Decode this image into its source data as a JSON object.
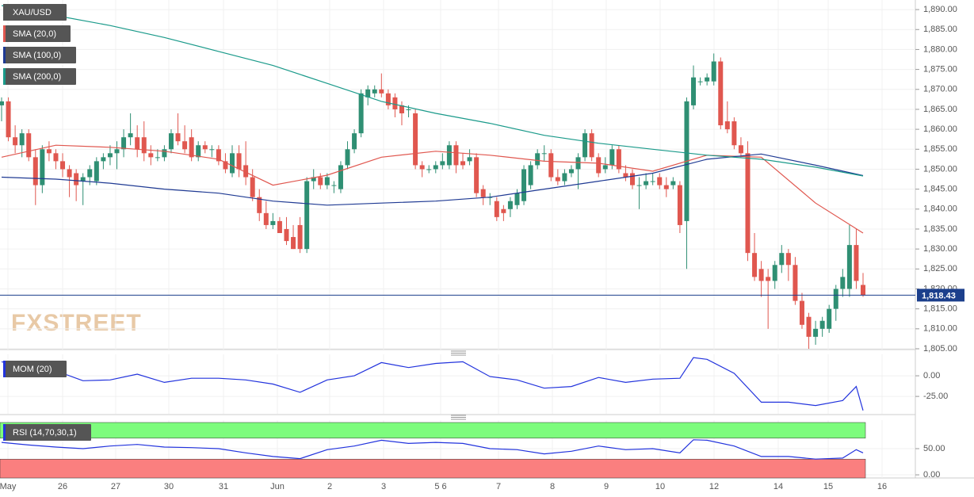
{
  "watermark": "FXSTREET",
  "x_axis": {
    "labels": [
      "May",
      "26",
      "27",
      "30",
      "31",
      "Jun",
      "2",
      "3",
      "5 6",
      "7",
      "8",
      "9",
      "10",
      "12",
      "14",
      "15",
      "16"
    ]
  },
  "chart_data": [
    {
      "type": "candlestick",
      "name": "XAU/USD",
      "up_color": "#2f8f73",
      "down_color": "#e0574f",
      "ohlc": [
        [
          1866,
          1868,
          1862,
          1867
        ],
        [
          1867,
          1868,
          1857,
          1858
        ],
        [
          1858,
          1861,
          1854,
          1856
        ],
        [
          1856,
          1860,
          1853,
          1859
        ],
        [
          1859,
          1860,
          1852,
          1853
        ],
        [
          1853,
          1855,
          1841,
          1846
        ],
        [
          1846,
          1856,
          1844,
          1855
        ],
        [
          1855,
          1857,
          1852,
          1854
        ],
        [
          1854,
          1855,
          1850,
          1852
        ],
        [
          1852,
          1854,
          1848,
          1850
        ],
        [
          1850,
          1851,
          1843,
          1848
        ],
        [
          1849,
          1850,
          1842,
          1846
        ],
        [
          1847,
          1849,
          1841,
          1848
        ],
        [
          1848,
          1851,
          1846,
          1850
        ],
        [
          1847,
          1853,
          1846,
          1852
        ],
        [
          1852,
          1854,
          1850,
          1853
        ],
        [
          1853,
          1856,
          1851,
          1854
        ],
        [
          1854,
          1857,
          1850,
          1855
        ],
        [
          1855,
          1860,
          1853,
          1858
        ],
        [
          1858,
          1864,
          1856,
          1859
        ],
        [
          1858,
          1861,
          1853,
          1855
        ],
        [
          1858,
          1862,
          1852,
          1854
        ],
        [
          1854,
          1856,
          1851,
          1853
        ],
        [
          1853,
          1855,
          1852,
          1853
        ],
        [
          1853,
          1856,
          1852,
          1855
        ],
        [
          1855,
          1860,
          1854,
          1859
        ],
        [
          1859,
          1864,
          1856,
          1857
        ],
        [
          1857,
          1861,
          1854,
          1855
        ],
        [
          1858,
          1860,
          1852,
          1853
        ],
        [
          1853,
          1857,
          1852,
          1856
        ],
        [
          1856,
          1857,
          1854,
          1855
        ],
        [
          1855,
          1856,
          1853,
          1855
        ],
        [
          1855,
          1856,
          1851,
          1852
        ],
        [
          1852,
          1854,
          1849,
          1850
        ],
        [
          1849,
          1856,
          1848,
          1854
        ],
        [
          1854,
          1856,
          1848,
          1850
        ],
        [
          1851,
          1857,
          1846,
          1848
        ],
        [
          1848,
          1850,
          1842,
          1843
        ],
        [
          1843,
          1845,
          1837,
          1839
        ],
        [
          1839,
          1842,
          1835,
          1836
        ],
        [
          1836,
          1839,
          1835,
          1837
        ],
        [
          1837,
          1838,
          1834,
          1834
        ],
        [
          1835,
          1838,
          1831,
          1832
        ],
        [
          1833,
          1836,
          1830,
          1830
        ],
        [
          1836,
          1838,
          1829,
          1830
        ],
        [
          1830,
          1848,
          1829,
          1847
        ],
        [
          1847,
          1850,
          1845,
          1848
        ],
        [
          1848,
          1849,
          1845,
          1846
        ],
        [
          1846,
          1849,
          1845,
          1848
        ],
        [
          1846,
          1847,
          1844,
          1846
        ],
        [
          1845,
          1852,
          1844,
          1851
        ],
        [
          1851,
          1857,
          1850,
          1855
        ],
        [
          1855,
          1860,
          1854,
          1859
        ],
        [
          1859,
          1870,
          1858,
          1869
        ],
        [
          1868,
          1871,
          1866,
          1870
        ],
        [
          1869,
          1871,
          1868,
          1870
        ],
        [
          1870,
          1874,
          1868,
          1869
        ],
        [
          1869,
          1870,
          1865,
          1866
        ],
        [
          1868,
          1869,
          1863,
          1865
        ],
        [
          1866,
          1867,
          1861,
          1864
        ],
        [
          1865,
          1866,
          1863,
          1865
        ],
        [
          1864,
          1865,
          1850,
          1851
        ],
        [
          1851,
          1852,
          1848,
          1850
        ],
        [
          1850,
          1851,
          1849,
          1850
        ],
        [
          1850,
          1852,
          1849,
          1851
        ],
        [
          1851,
          1854,
          1850,
          1852
        ],
        [
          1851,
          1857,
          1850,
          1856
        ],
        [
          1856,
          1857,
          1849,
          1851
        ],
        [
          1852,
          1854,
          1850,
          1851
        ],
        [
          1852,
          1855,
          1851,
          1853
        ],
        [
          1853,
          1854,
          1843,
          1844
        ],
        [
          1845,
          1846,
          1841,
          1843
        ],
        [
          1843,
          1844,
          1841,
          1843
        ],
        [
          1842,
          1843,
          1837,
          1838
        ],
        [
          1840,
          1841,
          1837,
          1839
        ],
        [
          1840,
          1843,
          1838,
          1842
        ],
        [
          1841,
          1845,
          1840,
          1844
        ],
        [
          1842,
          1851,
          1841,
          1850
        ],
        [
          1846,
          1852,
          1845,
          1851
        ],
        [
          1851,
          1855,
          1850,
          1854
        ],
        [
          1854,
          1856,
          1852,
          1854
        ],
        [
          1854,
          1855,
          1847,
          1848
        ],
        [
          1848,
          1850,
          1846,
          1847
        ],
        [
          1847,
          1850,
          1846,
          1849
        ],
        [
          1849,
          1851,
          1848,
          1850
        ],
        [
          1850,
          1854,
          1845,
          1853
        ],
        [
          1853,
          1860,
          1852,
          1859
        ],
        [
          1859,
          1860,
          1852,
          1853
        ],
        [
          1853,
          1854,
          1848,
          1849
        ],
        [
          1850,
          1853,
          1849,
          1851
        ],
        [
          1851,
          1856,
          1850,
          1855
        ],
        [
          1855,
          1856,
          1849,
          1850
        ],
        [
          1849,
          1851,
          1847,
          1848
        ],
        [
          1849,
          1850,
          1845,
          1846
        ],
        [
          1846,
          1848,
          1840,
          1846
        ],
        [
          1846,
          1849,
          1845,
          1847
        ],
        [
          1847,
          1849,
          1846,
          1847
        ],
        [
          1848,
          1849,
          1845,
          1846
        ],
        [
          1846,
          1848,
          1843,
          1845
        ],
        [
          1846,
          1848,
          1845,
          1847
        ],
        [
          1846,
          1847,
          1834,
          1836
        ],
        [
          1837,
          1868,
          1825,
          1867
        ],
        [
          1866,
          1876,
          1865,
          1873
        ],
        [
          1872,
          1873,
          1871,
          1872
        ],
        [
          1872,
          1874,
          1871,
          1873
        ],
        [
          1872,
          1879,
          1871,
          1877
        ],
        [
          1877,
          1878,
          1860,
          1861
        ],
        [
          1862,
          1867,
          1859,
          1860
        ],
        [
          1862,
          1863,
          1855,
          1856
        ],
        [
          1856,
          1858,
          1853,
          1854
        ],
        [
          1854,
          1857,
          1827,
          1829
        ],
        [
          1829,
          1834,
          1822,
          1823
        ],
        [
          1825,
          1827,
          1818,
          1822
        ],
        [
          1823,
          1825,
          1810,
          1822
        ],
        [
          1822,
          1827,
          1820,
          1826
        ],
        [
          1826,
          1831,
          1824,
          1829
        ],
        [
          1829,
          1830,
          1822,
          1826
        ],
        [
          1826,
          1828,
          1816,
          1817
        ],
        [
          1817,
          1819,
          1810,
          1811
        ],
        [
          1813,
          1814,
          1805,
          1808
        ],
        [
          1808,
          1812,
          1806,
          1810
        ],
        [
          1810,
          1813,
          1808,
          1812
        ],
        [
          1810,
          1816,
          1809,
          1815
        ],
        [
          1815,
          1821,
          1812,
          1820
        ],
        [
          1820,
          1825,
          1818,
          1823
        ],
        [
          1820,
          1836,
          1818,
          1831
        ],
        [
          1831,
          1835,
          1820,
          1822
        ],
        [
          1821,
          1824,
          1818,
          1818.43
        ]
      ],
      "series": [
        {
          "name": "SMA (20,0)",
          "color": "#e0574f",
          "x": [
            0,
            8,
            16,
            24,
            32,
            40,
            48,
            56,
            64,
            72,
            80,
            88,
            96,
            104,
            112,
            120,
            127
          ],
          "values": [
            1853,
            1856,
            1855.5,
            1854.5,
            1852.5,
            1846,
            1848.5,
            1853,
            1854.5,
            1853.5,
            1852,
            1851.5,
            1849.5,
            1853.5,
            1853,
            1841.5,
            1834
          ]
        },
        {
          "name": "SMA (100,0)",
          "color": "#1f3a93",
          "x": [
            0,
            8,
            16,
            24,
            32,
            40,
            48,
            56,
            64,
            72,
            80,
            88,
            96,
            104,
            112,
            120,
            127
          ],
          "values": [
            1848,
            1847.5,
            1846.5,
            1845,
            1844,
            1842,
            1841,
            1841.5,
            1842,
            1843,
            1845,
            1847,
            1849,
            1852.5,
            1853.8,
            1851,
            1848.4
          ]
        },
        {
          "name": "SMA (200,0)",
          "color": "#1a9a8a",
          "x": [
            0,
            8,
            16,
            24,
            32,
            40,
            48,
            56,
            64,
            72,
            80,
            88,
            96,
            104,
            112,
            120,
            127
          ],
          "values": [
            1891,
            1888.5,
            1886,
            1883,
            1879.5,
            1876,
            1871.5,
            1867,
            1864,
            1861.5,
            1858.5,
            1856.5,
            1855,
            1853.5,
            1852.5,
            1850.5,
            1848.3
          ]
        }
      ],
      "last_price": {
        "value": 1818.43,
        "label": "1,818.43"
      },
      "ylim": [
        1804.8,
        1892.4
      ],
      "yticks": [
        {
          "value": 1890,
          "label": "1,890.00"
        },
        {
          "value": 1885,
          "label": "1,885.00"
        },
        {
          "value": 1880,
          "label": "1,880.00"
        },
        {
          "value": 1875,
          "label": "1,875.00"
        },
        {
          "value": 1870,
          "label": "1,870.00"
        },
        {
          "value": 1865,
          "label": "1,865.00"
        },
        {
          "value": 1860,
          "label": "1,860.00"
        },
        {
          "value": 1855,
          "label": "1,855.00"
        },
        {
          "value": 1850,
          "label": "1,850.00"
        },
        {
          "value": 1845,
          "label": "1,845.00"
        },
        {
          "value": 1840,
          "label": "1,840.00"
        },
        {
          "value": 1835,
          "label": "1,835.00"
        },
        {
          "value": 1830,
          "label": "1,830.00"
        },
        {
          "value": 1825,
          "label": "1,825.00"
        },
        {
          "value": 1820,
          "label": "1,820.00"
        },
        {
          "value": 1815,
          "label": "1,815.00"
        },
        {
          "value": 1810,
          "label": "1,810.00"
        },
        {
          "value": 1805,
          "label": "1,805.00"
        }
      ]
    },
    {
      "type": "line",
      "series": [
        {
          "name": "MOM (20)",
          "color": "#2233dd",
          "x": [
            0,
            4,
            8,
            12,
            16,
            20,
            24,
            28,
            32,
            36,
            40,
            44,
            48,
            52,
            56,
            60,
            64,
            68,
            72,
            76,
            80,
            84,
            88,
            92,
            96,
            100,
            102,
            104,
            108,
            112,
            116,
            120,
            124,
            126,
            127
          ],
          "values": [
            17,
            10,
            6,
            -6,
            -5,
            2,
            -8,
            -3,
            -3,
            -5,
            -10,
            -20,
            -5,
            0,
            16,
            10,
            15,
            17,
            -1,
            -5,
            -15,
            -13,
            -2,
            -8,
            -4,
            -3,
            22,
            20,
            3,
            -32,
            -32,
            -36,
            -30,
            -13,
            -42
          ]
        }
      ],
      "ylim": [
        -46,
        26
      ],
      "yticks": [
        {
          "value": 0,
          "label": "0.00"
        },
        {
          "value": -25,
          "label": "-25.00"
        }
      ]
    },
    {
      "type": "line",
      "series": [
        {
          "name": "RSI (14,70,30,1)",
          "color": "#2233dd",
          "x": [
            0,
            4,
            8,
            12,
            16,
            20,
            24,
            28,
            32,
            36,
            40,
            44,
            48,
            52,
            56,
            60,
            64,
            68,
            72,
            76,
            80,
            84,
            88,
            92,
            96,
            100,
            102,
            104,
            108,
            112,
            116,
            120,
            124,
            126,
            127
          ],
          "values": [
            62,
            57,
            53,
            50,
            55,
            58,
            53,
            52,
            50,
            42,
            35,
            31,
            48,
            55,
            66,
            60,
            62,
            60,
            50,
            48,
            40,
            45,
            55,
            48,
            50,
            42,
            67,
            66,
            55,
            35,
            35,
            30,
            32,
            48,
            42
          ]
        }
      ],
      "upper": 70,
      "lower": 30,
      "ylim": [
        -6,
        104.5
      ],
      "yticks": [
        {
          "value": 50,
          "label": "50.00"
        },
        {
          "value": 0,
          "label": "0.00"
        }
      ]
    }
  ]
}
